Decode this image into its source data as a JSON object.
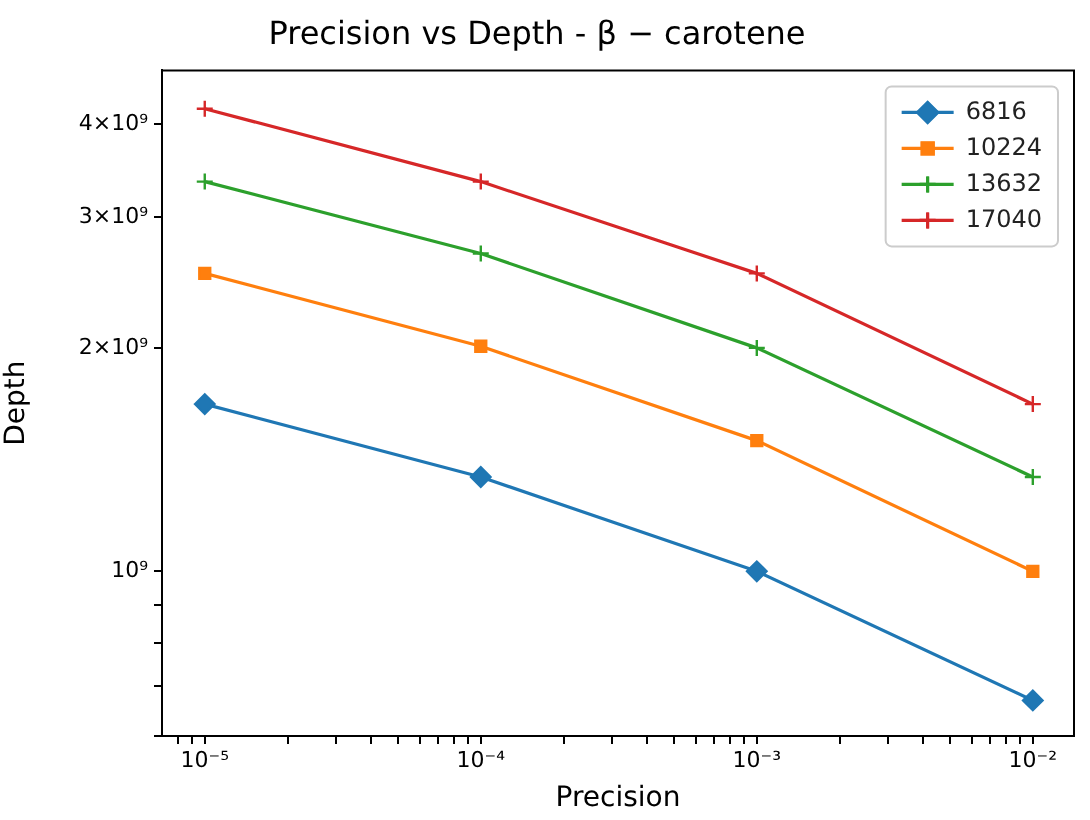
{
  "chart_data": {
    "type": "line",
    "title": "Precision vs Depth - β − carotene",
    "xlabel": "Precision",
    "ylabel": "Depth",
    "log": "xy",
    "grid": false,
    "legend": "top right",
    "line_style": "solid",
    "x": [
      1e-05,
      0.0001,
      0.001,
      0.01
    ],
    "xlim": [
      7e-06,
      0.0141
    ],
    "ylim": [
      600000000,
      4730000000
    ],
    "xticks": [
      {
        "value": 1e-05,
        "label": "10⁻⁵"
      },
      {
        "value": 0.0001,
        "label": "10⁻⁴"
      },
      {
        "value": 0.001,
        "label": "10⁻³"
      },
      {
        "value": 0.01,
        "label": "10⁻²"
      },
      {
        "value": 8e-06,
        "label": null
      },
      {
        "value": 9e-06,
        "label": null
      },
      {
        "value": 2e-05,
        "label": null
      },
      {
        "value": 3e-05,
        "label": null
      },
      {
        "value": 4e-05,
        "label": null
      },
      {
        "value": 5e-05,
        "label": null
      },
      {
        "value": 6e-05,
        "label": null
      },
      {
        "value": 7e-05,
        "label": null
      },
      {
        "value": 8e-05,
        "label": null
      },
      {
        "value": 9e-05,
        "label": null
      },
      {
        "value": 0.0002,
        "label": null
      },
      {
        "value": 0.0003,
        "label": null
      },
      {
        "value": 0.0004,
        "label": null
      },
      {
        "value": 0.0005,
        "label": null
      },
      {
        "value": 0.0006,
        "label": null
      },
      {
        "value": 0.0007,
        "label": null
      },
      {
        "value": 0.0008,
        "label": null
      },
      {
        "value": 0.0009,
        "label": null
      },
      {
        "value": 0.002,
        "label": null
      },
      {
        "value": 0.003,
        "label": null
      },
      {
        "value": 0.004,
        "label": null
      },
      {
        "value": 0.005,
        "label": null
      },
      {
        "value": 0.006,
        "label": null
      },
      {
        "value": 0.007,
        "label": null
      },
      {
        "value": 0.008,
        "label": null
      },
      {
        "value": 0.009,
        "label": null
      }
    ],
    "yticks": [
      {
        "value": 1000000000,
        "label": "10⁹"
      },
      {
        "value": 2000000000,
        "label": "2×10⁹"
      },
      {
        "value": 3000000000,
        "label": "3×10⁹"
      },
      {
        "value": 4000000000,
        "label": "4×10⁹"
      },
      {
        "value": 600000000,
        "label": null
      },
      {
        "value": 700000000,
        "label": null
      },
      {
        "value": 800000000,
        "label": null
      },
      {
        "value": 900000000,
        "label": null
      }
    ],
    "series": [
      {
        "name": "6816",
        "color": "#1f77b4",
        "marker": "diamond",
        "values": [
          1680000000,
          1340000000,
          1000000000,
          670000000
        ]
      },
      {
        "name": "10224",
        "color": "#ff7f0e",
        "marker": "square",
        "values": [
          2520000000,
          2010000000,
          1500000000,
          1000000000
        ]
      },
      {
        "name": "13632",
        "color": "#2ca02c",
        "marker": "cross",
        "values": [
          3350000000,
          2680000000,
          2000000000,
          1340000000
        ]
      },
      {
        "name": "17040",
        "color": "#d62728",
        "marker": "cross",
        "values": [
          4200000000,
          3350000000,
          2520000000,
          1680000000
        ]
      }
    ]
  }
}
